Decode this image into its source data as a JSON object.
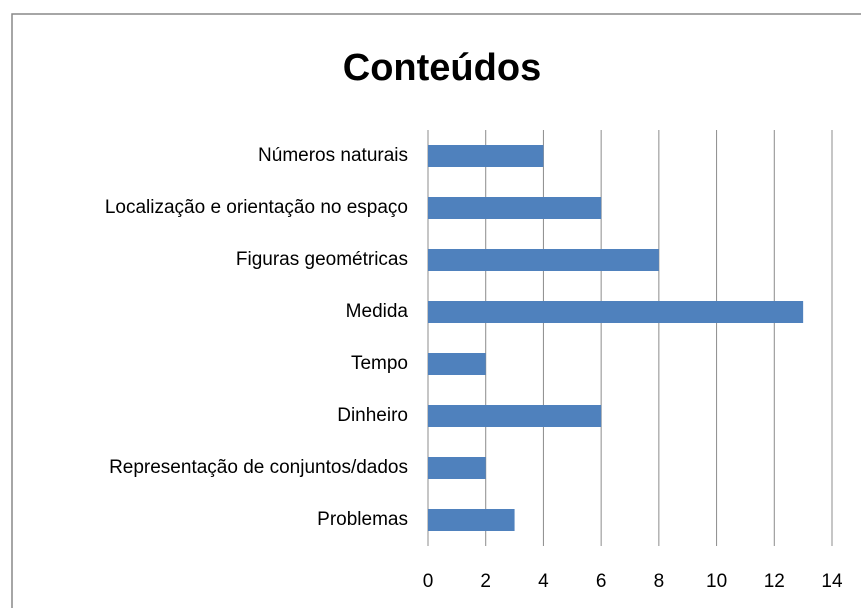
{
  "chart_data": {
    "type": "hbar",
    "title": "Conteúdos",
    "categories": [
      "Números naturais",
      "Localização e orientação no espaço",
      "Figuras geométricas",
      "Medida",
      "Tempo",
      "Dinheiro",
      "Representação de conjuntos/dados",
      "Problemas"
    ],
    "values": [
      4,
      6,
      8,
      13,
      2,
      6,
      2,
      3
    ],
    "color": "#4f81bd",
    "xlim": [
      0,
      14
    ],
    "xticks": [
      0,
      2,
      4,
      6,
      8,
      10,
      12,
      14
    ],
    "grid": true
  }
}
